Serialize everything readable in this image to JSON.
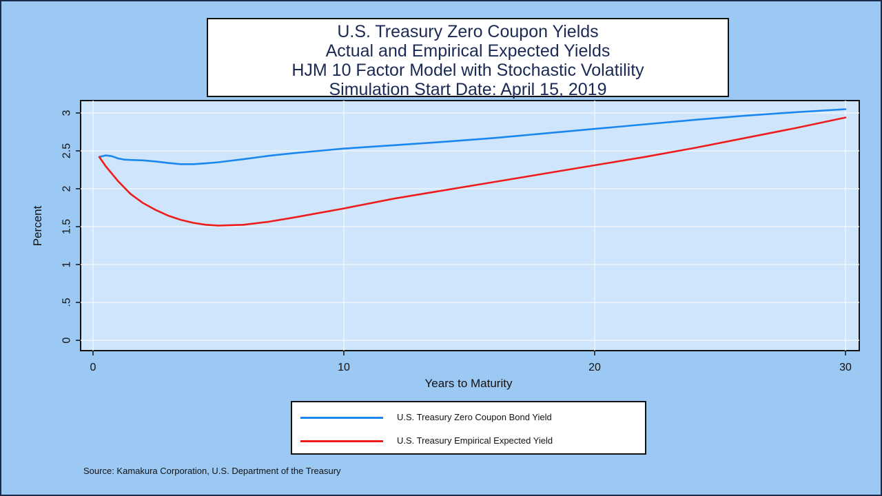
{
  "title_lines": [
    "U.S. Treasury Zero Coupon Yields",
    "Actual and Empirical Expected Yields",
    "HJM 10 Factor Model with Stochastic Volatility",
    "Simulation Start Date: April 15, 2019"
  ],
  "source": "Source: Kamakura Corporation, U.S. Department of the Treasury",
  "chart_data": {
    "type": "line",
    "xlabel": "Years to Maturity",
    "ylabel": "Percent",
    "xlim": [
      0,
      30
    ],
    "ylim": [
      0,
      3
    ],
    "x_ticks": [
      "0",
      "10",
      "20",
      "30"
    ],
    "y_ticks": [
      "0",
      ".5",
      "1",
      "1.5",
      "2",
      "2.5",
      "3"
    ],
    "grid": true,
    "legend_position": "bottom",
    "series": [
      {
        "name": "U.S. Treasury Zero Coupon Bond Yield",
        "color": "#1a87ee",
        "x": [
          0.25,
          0.5,
          0.75,
          1,
          1.25,
          1.5,
          2,
          2.5,
          3,
          3.5,
          4,
          4.5,
          5,
          6,
          7,
          8,
          9,
          10,
          12,
          14,
          16,
          18,
          20,
          22,
          24,
          26,
          28,
          30
        ],
        "y": [
          2.42,
          2.44,
          2.43,
          2.4,
          2.385,
          2.38,
          2.375,
          2.36,
          2.34,
          2.325,
          2.325,
          2.335,
          2.35,
          2.39,
          2.435,
          2.47,
          2.5,
          2.53,
          2.575,
          2.62,
          2.67,
          2.73,
          2.79,
          2.85,
          2.91,
          2.965,
          3.01,
          3.05
        ]
      },
      {
        "name": "U.S. Treasury Empirical Expected Yield",
        "color": "#ee1c1c",
        "x": [
          0.25,
          0.5,
          1,
          1.5,
          2,
          2.5,
          3,
          3.5,
          4,
          4.5,
          5,
          6,
          7,
          8,
          9,
          10,
          12,
          14,
          16,
          18,
          20,
          22,
          24,
          26,
          28,
          30
        ],
        "y": [
          2.42,
          2.3,
          2.1,
          1.93,
          1.81,
          1.72,
          1.645,
          1.59,
          1.55,
          1.525,
          1.515,
          1.525,
          1.565,
          1.62,
          1.68,
          1.74,
          1.87,
          1.98,
          2.09,
          2.2,
          2.31,
          2.42,
          2.54,
          2.67,
          2.8,
          2.94
        ]
      }
    ]
  }
}
